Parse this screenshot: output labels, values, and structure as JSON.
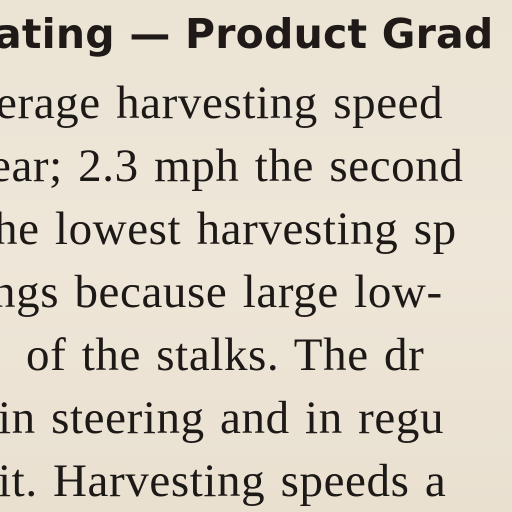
{
  "document": {
    "heading": "ating — Product Grad",
    "lines": [
      "erage harvesting speed",
      "ear; 2.3 mph the second",
      "he lowest harvesting sp",
      "ngs because large low-",
      "of the stalks. The dr",
      "in steering and in regu",
      "it. Harvesting speeds a"
    ]
  }
}
